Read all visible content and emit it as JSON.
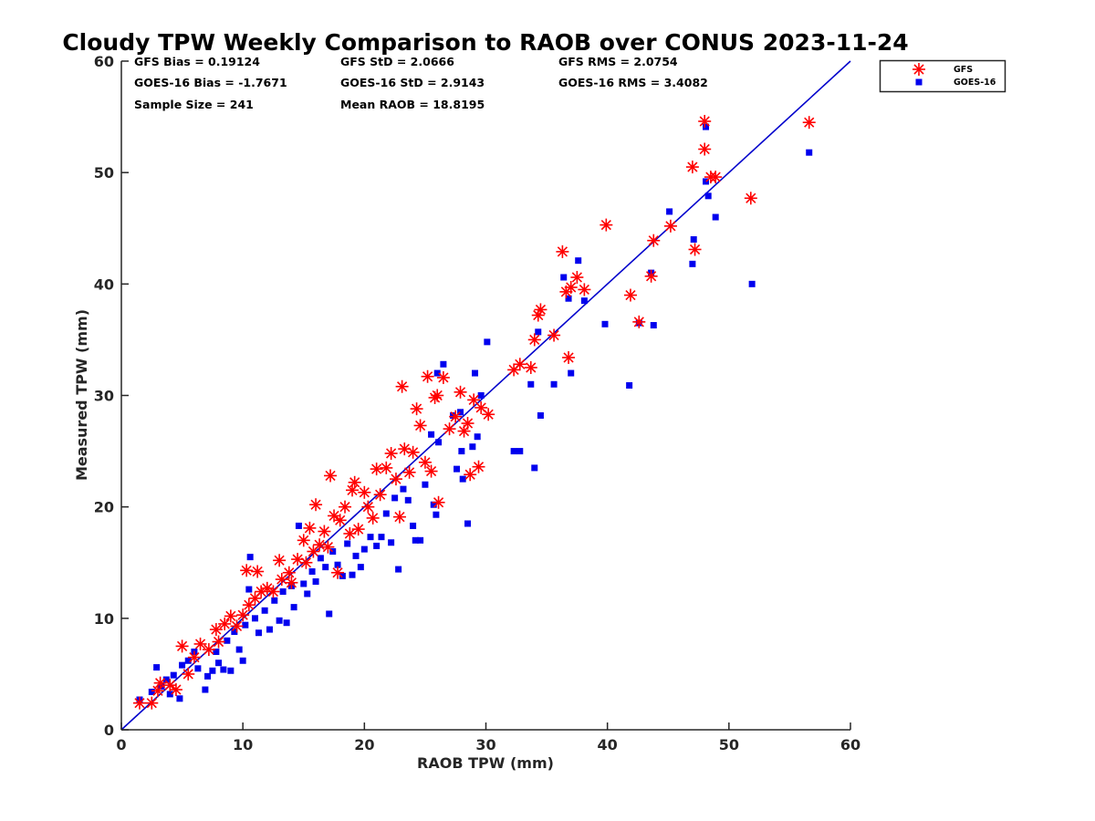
{
  "chart_data": {
    "type": "scatter",
    "title": "Cloudy TPW Weekly Comparison to RAOB over CONUS 2023-11-24",
    "xlabel": "RAOB TPW (mm)",
    "ylabel": "Measured TPW (mm)",
    "xlim": [
      0,
      60
    ],
    "ylim": [
      0,
      60
    ],
    "xticks": [
      "0",
      "10",
      "20",
      "30",
      "40",
      "50",
      "60"
    ],
    "yticks": [
      "0",
      "10",
      "20",
      "30",
      "40",
      "50",
      "60"
    ],
    "grid": false,
    "legend_position": "outside top-right",
    "stats": {
      "gfs_bias": "GFS Bias = 0.19124",
      "goes_bias": "GOES-16 Bias = -1.7671",
      "sample_size": "Sample Size = 241",
      "gfs_std": "GFS StD = 2.0666",
      "goes_std": "GOES-16 StD = 2.9143",
      "mean_raob": "Mean RAOB = 18.8195",
      "gfs_rms": "GFS RMS = 2.0754",
      "goes_rms": "GOES-16 RMS = 3.4082"
    },
    "reference_line": {
      "x": [
        0,
        60
      ],
      "y": [
        0,
        60
      ],
      "color": "#0000cc"
    },
    "series": [
      {
        "name": "GFS",
        "marker": "asterisk",
        "color": "#ff0000",
        "points": [
          [
            1.5,
            2.4
          ],
          [
            2.5,
            2.4
          ],
          [
            3.0,
            3.5
          ],
          [
            3.2,
            4.2
          ],
          [
            4.0,
            4.0
          ],
          [
            4.5,
            3.6
          ],
          [
            5.0,
            7.5
          ],
          [
            5.5,
            5.0
          ],
          [
            6.0,
            6.5
          ],
          [
            6.5,
            7.7
          ],
          [
            7.2,
            7.2
          ],
          [
            7.8,
            9.0
          ],
          [
            8.0,
            7.9
          ],
          [
            8.5,
            9.5
          ],
          [
            9.0,
            10.2
          ],
          [
            9.5,
            9.3
          ],
          [
            10.0,
            10.3
          ],
          [
            10.3,
            14.3
          ],
          [
            10.5,
            11.2
          ],
          [
            11.0,
            11.8
          ],
          [
            11.2,
            14.2
          ],
          [
            11.5,
            12.4
          ],
          [
            12.0,
            12.7
          ],
          [
            12.5,
            12.4
          ],
          [
            13.0,
            15.2
          ],
          [
            13.2,
            13.5
          ],
          [
            13.8,
            14.1
          ],
          [
            14.0,
            13.2
          ],
          [
            14.5,
            15.3
          ],
          [
            15.0,
            17.0
          ],
          [
            15.2,
            15.0
          ],
          [
            15.5,
            18.1
          ],
          [
            15.8,
            16.0
          ],
          [
            16.0,
            20.2
          ],
          [
            16.3,
            16.6
          ],
          [
            16.7,
            17.8
          ],
          [
            17.0,
            16.4
          ],
          [
            17.2,
            22.8
          ],
          [
            17.5,
            19.2
          ],
          [
            17.8,
            14.1
          ],
          [
            18.0,
            18.8
          ],
          [
            18.4,
            20.0
          ],
          [
            18.8,
            17.6
          ],
          [
            19.0,
            21.5
          ],
          [
            19.2,
            22.2
          ],
          [
            19.5,
            18.0
          ],
          [
            20.0,
            21.3
          ],
          [
            20.3,
            20.0
          ],
          [
            20.7,
            19.0
          ],
          [
            21.0,
            23.4
          ],
          [
            21.3,
            21.1
          ],
          [
            21.8,
            23.5
          ],
          [
            22.2,
            24.8
          ],
          [
            22.6,
            22.5
          ],
          [
            22.9,
            19.1
          ],
          [
            23.1,
            30.8
          ],
          [
            23.3,
            25.2
          ],
          [
            23.7,
            23.1
          ],
          [
            24.0,
            24.9
          ],
          [
            24.3,
            28.8
          ],
          [
            24.6,
            27.3
          ],
          [
            25.0,
            24.0
          ],
          [
            25.2,
            31.7
          ],
          [
            25.5,
            23.2
          ],
          [
            25.8,
            29.8
          ],
          [
            26.0,
            30.0
          ],
          [
            26.1,
            20.4
          ],
          [
            26.5,
            31.6
          ],
          [
            27.0,
            27.0
          ],
          [
            27.5,
            28.1
          ],
          [
            27.9,
            30.3
          ],
          [
            28.2,
            26.8
          ],
          [
            28.5,
            27.5
          ],
          [
            28.7,
            22.9
          ],
          [
            29.0,
            29.6
          ],
          [
            29.4,
            23.6
          ],
          [
            29.6,
            28.9
          ],
          [
            30.2,
            28.3
          ],
          [
            32.3,
            32.3
          ],
          [
            32.8,
            32.8
          ],
          [
            33.7,
            32.5
          ],
          [
            34.0,
            35.0
          ],
          [
            34.3,
            37.2
          ],
          [
            34.5,
            37.7
          ],
          [
            35.6,
            35.4
          ],
          [
            36.3,
            42.9
          ],
          [
            36.6,
            39.3
          ],
          [
            37.0,
            39.7
          ],
          [
            36.8,
            33.4
          ],
          [
            37.5,
            40.6
          ],
          [
            38.1,
            39.5
          ],
          [
            39.9,
            45.3
          ],
          [
            41.9,
            39.0
          ],
          [
            42.6,
            36.6
          ],
          [
            43.6,
            40.7
          ],
          [
            43.8,
            43.9
          ],
          [
            45.2,
            45.2
          ],
          [
            47.0,
            50.5
          ],
          [
            47.2,
            43.1
          ],
          [
            48.0,
            54.6
          ],
          [
            48.0,
            52.1
          ],
          [
            48.5,
            49.6
          ],
          [
            48.9,
            49.6
          ],
          [
            51.8,
            47.7
          ],
          [
            56.6,
            54.5
          ]
        ]
      },
      {
        "name": "GOES-16",
        "marker": "square",
        "color": "#0000ee",
        "points": [
          [
            1.5,
            2.7
          ],
          [
            2.5,
            3.4
          ],
          [
            2.9,
            5.6
          ],
          [
            3.3,
            3.9
          ],
          [
            3.7,
            4.5
          ],
          [
            4.0,
            3.2
          ],
          [
            4.3,
            4.9
          ],
          [
            4.8,
            2.8
          ],
          [
            5.0,
            5.8
          ],
          [
            5.5,
            6.2
          ],
          [
            6.0,
            7.0
          ],
          [
            6.3,
            5.5
          ],
          [
            6.9,
            3.6
          ],
          [
            7.1,
            4.8
          ],
          [
            7.5,
            5.3
          ],
          [
            7.8,
            7.0
          ],
          [
            8.0,
            6.0
          ],
          [
            8.4,
            5.4
          ],
          [
            8.7,
            8.0
          ],
          [
            9.0,
            5.3
          ],
          [
            9.3,
            8.8
          ],
          [
            9.7,
            7.2
          ],
          [
            10.0,
            6.2
          ],
          [
            10.2,
            9.4
          ],
          [
            10.5,
            12.6
          ],
          [
            10.6,
            15.5
          ],
          [
            11.0,
            10.0
          ],
          [
            11.3,
            8.7
          ],
          [
            11.8,
            10.7
          ],
          [
            12.2,
            9.0
          ],
          [
            12.6,
            11.6
          ],
          [
            13.0,
            9.8
          ],
          [
            13.3,
            12.4
          ],
          [
            13.6,
            9.6
          ],
          [
            14.0,
            12.9
          ],
          [
            14.2,
            11.0
          ],
          [
            14.6,
            18.3
          ],
          [
            15.0,
            13.1
          ],
          [
            15.3,
            12.2
          ],
          [
            15.7,
            14.2
          ],
          [
            16.0,
            13.3
          ],
          [
            16.4,
            15.4
          ],
          [
            16.8,
            14.6
          ],
          [
            17.1,
            10.4
          ],
          [
            17.4,
            16.0
          ],
          [
            17.8,
            14.8
          ],
          [
            18.2,
            13.8
          ],
          [
            18.6,
            16.7
          ],
          [
            19.0,
            13.9
          ],
          [
            19.3,
            15.6
          ],
          [
            19.7,
            14.6
          ],
          [
            20.0,
            16.2
          ],
          [
            20.5,
            17.3
          ],
          [
            21.0,
            16.5
          ],
          [
            21.4,
            17.3
          ],
          [
            21.8,
            19.4
          ],
          [
            22.2,
            16.8
          ],
          [
            22.5,
            20.8
          ],
          [
            22.8,
            14.4
          ],
          [
            23.2,
            21.6
          ],
          [
            23.6,
            20.6
          ],
          [
            24.0,
            18.3
          ],
          [
            24.2,
            17.0
          ],
          [
            24.6,
            17.0
          ],
          [
            25.0,
            22.0
          ],
          [
            25.5,
            26.5
          ],
          [
            25.7,
            20.2
          ],
          [
            25.9,
            19.3
          ],
          [
            26.0,
            32.0
          ],
          [
            26.1,
            25.8
          ],
          [
            26.5,
            32.8
          ],
          [
            27.3,
            28.2
          ],
          [
            27.6,
            23.4
          ],
          [
            27.9,
            28.5
          ],
          [
            28.0,
            25.0
          ],
          [
            28.1,
            22.5
          ],
          [
            28.5,
            18.5
          ],
          [
            28.9,
            25.4
          ],
          [
            29.1,
            32.0
          ],
          [
            29.3,
            26.3
          ],
          [
            29.6,
            30.0
          ],
          [
            30.1,
            34.8
          ],
          [
            32.3,
            25.0
          ],
          [
            32.8,
            25.0
          ],
          [
            33.7,
            31.0
          ],
          [
            34.0,
            23.5
          ],
          [
            34.3,
            35.7
          ],
          [
            34.5,
            28.2
          ],
          [
            35.6,
            31.0
          ],
          [
            36.4,
            40.6
          ],
          [
            36.8,
            38.7
          ],
          [
            37.0,
            32.0
          ],
          [
            37.6,
            42.1
          ],
          [
            38.1,
            38.5
          ],
          [
            39.8,
            36.4
          ],
          [
            41.8,
            30.9
          ],
          [
            42.6,
            36.5
          ],
          [
            43.6,
            41.0
          ],
          [
            43.8,
            36.3
          ],
          [
            45.1,
            46.5
          ],
          [
            47.0,
            41.8
          ],
          [
            47.1,
            44.0
          ],
          [
            48.1,
            54.1
          ],
          [
            48.1,
            49.2
          ],
          [
            48.3,
            47.9
          ],
          [
            48.9,
            46.0
          ],
          [
            51.9,
            40.0
          ],
          [
            56.6,
            51.8
          ]
        ]
      }
    ]
  }
}
